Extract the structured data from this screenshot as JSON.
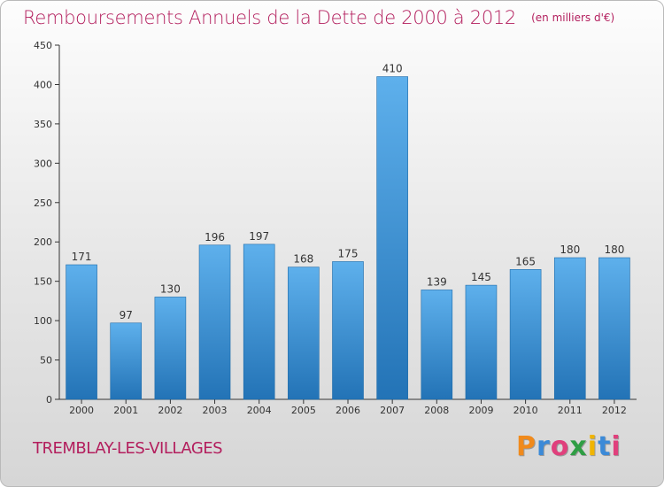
{
  "header": {
    "title": "Remboursements Annuels de la Dette de 2000 à 2012",
    "unit": "(en milliers d'€)"
  },
  "footer": {
    "commune": "TREMBLAY-LES-VILLAGES",
    "brand": "Proxiti"
  },
  "colors": {
    "title": "#b31e5d",
    "bar_top": "#5eb0ec",
    "bar_bottom": "#2373b6",
    "logo_letters": [
      "#f08a1c",
      "#3b8ad8",
      "#e0407c",
      "#2f9e44",
      "#f0b400",
      "#3b8ad8",
      "#e0407c"
    ]
  },
  "chart_data": {
    "type": "bar",
    "categories": [
      "2000",
      "2001",
      "2002",
      "2003",
      "2004",
      "2005",
      "2006",
      "2007",
      "2008",
      "2009",
      "2010",
      "2011",
      "2012"
    ],
    "values": [
      171,
      97,
      130,
      196,
      197,
      168,
      175,
      410,
      139,
      145,
      165,
      180,
      180
    ],
    "title": "Remboursements Annuels de la Dette de 2000 à 2012",
    "xlabel": "",
    "ylabel": "",
    "ylim": [
      0,
      450
    ],
    "yticks": [
      0,
      50,
      100,
      150,
      200,
      250,
      300,
      350,
      400,
      450
    ],
    "grid": false,
    "legend": "none"
  }
}
